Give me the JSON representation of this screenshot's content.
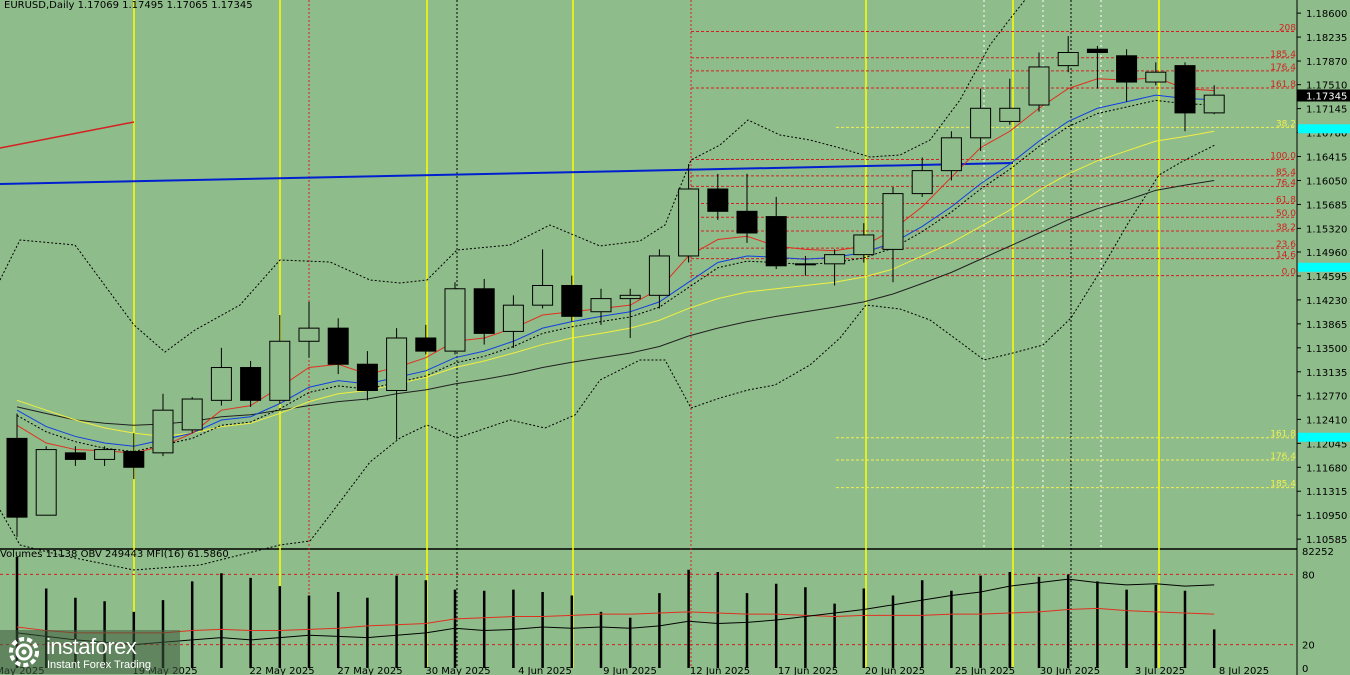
{
  "header": {
    "ohlc": "EURUSD,Daily  1.17069 1.17495 1.17065 1.17345",
    "volume_indicators": "Volumes 11138  OBV 249443  MFI(16) 61.5860"
  },
  "logo": {
    "name": "instaforex",
    "tagline": "Instant Forex Trading"
  },
  "colors": {
    "background": "#8fbc8b",
    "fib_red": "#d42020",
    "fib_yellow": "#f0f050",
    "vline_yellow": "#ffff00",
    "ma_red": "#e03020",
    "ma_blue": "#1040e0",
    "ma_yellow": "#f0f040",
    "ma_black": "#202020",
    "trend_blue": "#0020d0",
    "price_highlight": "#000000",
    "cyan_label": "#00ffff"
  },
  "chart_data": {
    "type": "candlestick",
    "symbol": "EURUSD",
    "timeframe": "Daily",
    "ylim": [
      1.1045,
      1.188
    ],
    "y_ticks": [
      "1.18600",
      "1.18235",
      "1.17870",
      "1.17510",
      "1.17145",
      "1.16780",
      "1.16415",
      "1.16050",
      "1.15685",
      "1.15320",
      "1.14960",
      "1.14595",
      "1.14230",
      "1.13865",
      "1.13500",
      "1.13135",
      "1.12770",
      "1.12410",
      "1.12045",
      "1.11680",
      "1.11315",
      "1.10950",
      "1.10585"
    ],
    "x_labels": [
      "May 2025",
      "19 May 2025",
      "22 May 2025",
      "27 May 2025",
      "30 May 2025",
      "4 Jun 2025",
      "9 Jun 2025",
      "12 Jun 2025",
      "17 Jun 2025",
      "20 Jun 2025",
      "25 Jun 2025",
      "30 Jun 2025",
      "3 Jul 2025",
      "8 Jul 2025"
    ],
    "current_price": "1.17345",
    "candles": [
      {
        "o": 1.1212,
        "h": 1.125,
        "l": 1.1062,
        "c": 1.1092
      },
      {
        "o": 1.1095,
        "h": 1.12,
        "l": 1.1095,
        "c": 1.1195
      },
      {
        "o": 1.119,
        "h": 1.12,
        "l": 1.117,
        "c": 1.118
      },
      {
        "o": 1.118,
        "h": 1.12,
        "l": 1.117,
        "c": 1.1195
      },
      {
        "o": 1.1192,
        "h": 1.122,
        "l": 1.115,
        "c": 1.1168
      },
      {
        "o": 1.119,
        "h": 1.128,
        "l": 1.1185,
        "c": 1.1255
      },
      {
        "o": 1.1225,
        "h": 1.1275,
        "l": 1.122,
        "c": 1.1272
      },
      {
        "o": 1.127,
        "h": 1.135,
        "l": 1.1262,
        "c": 1.132
      },
      {
        "o": 1.132,
        "h": 1.133,
        "l": 1.126,
        "c": 1.127
      },
      {
        "o": 1.127,
        "h": 1.14,
        "l": 1.1265,
        "c": 1.136
      },
      {
        "o": 1.136,
        "h": 1.142,
        "l": 1.1335,
        "c": 1.138
      },
      {
        "o": 1.138,
        "h": 1.1395,
        "l": 1.131,
        "c": 1.1325
      },
      {
        "o": 1.1325,
        "h": 1.1345,
        "l": 1.127,
        "c": 1.1285
      },
      {
        "o": 1.1285,
        "h": 1.138,
        "l": 1.121,
        "c": 1.1365
      },
      {
        "o": 1.1365,
        "h": 1.1385,
        "l": 1.134,
        "c": 1.1345
      },
      {
        "o": 1.1345,
        "h": 1.145,
        "l": 1.134,
        "c": 1.144
      },
      {
        "o": 1.144,
        "h": 1.1455,
        "l": 1.1355,
        "c": 1.1372
      },
      {
        "o": 1.1375,
        "h": 1.143,
        "l": 1.135,
        "c": 1.1415
      },
      {
        "o": 1.1415,
        "h": 1.15,
        "l": 1.141,
        "c": 1.1445
      },
      {
        "o": 1.1445,
        "h": 1.146,
        "l": 1.139,
        "c": 1.1398
      },
      {
        "o": 1.1405,
        "h": 1.144,
        "l": 1.1385,
        "c": 1.1425
      },
      {
        "o": 1.1425,
        "h": 1.144,
        "l": 1.1365,
        "c": 1.143
      },
      {
        "o": 1.143,
        "h": 1.15,
        "l": 1.141,
        "c": 1.149
      },
      {
        "o": 1.149,
        "h": 1.163,
        "l": 1.148,
        "c": 1.1592
      },
      {
        "o": 1.1592,
        "h": 1.1615,
        "l": 1.1545,
        "c": 1.1558
      },
      {
        "o": 1.1558,
        "h": 1.1615,
        "l": 1.151,
        "c": 1.1525
      },
      {
        "o": 1.155,
        "h": 1.158,
        "l": 1.147,
        "c": 1.1475
      },
      {
        "o": 1.1478,
        "h": 1.149,
        "l": 1.146,
        "c": 1.1478
      },
      {
        "o": 1.1478,
        "h": 1.15,
        "l": 1.1445,
        "c": 1.1492
      },
      {
        "o": 1.1492,
        "h": 1.154,
        "l": 1.148,
        "c": 1.1522
      },
      {
        "o": 1.15,
        "h": 1.1595,
        "l": 1.145,
        "c": 1.1585
      },
      {
        "o": 1.1585,
        "h": 1.164,
        "l": 1.158,
        "c": 1.162
      },
      {
        "o": 1.162,
        "h": 1.168,
        "l": 1.1605,
        "c": 1.167
      },
      {
        "o": 1.167,
        "h": 1.1745,
        "l": 1.165,
        "c": 1.1715
      },
      {
        "o": 1.1695,
        "h": 1.176,
        "l": 1.169,
        "c": 1.1715
      },
      {
        "o": 1.172,
        "h": 1.18,
        "l": 1.171,
        "c": 1.1778
      },
      {
        "o": 1.178,
        "h": 1.1825,
        "l": 1.177,
        "c": 1.18
      },
      {
        "o": 1.1805,
        "h": 1.181,
        "l": 1.1745,
        "c": 1.18
      },
      {
        "o": 1.1795,
        "h": 1.1805,
        "l": 1.1725,
        "c": 1.1755
      },
      {
        "o": 1.1755,
        "h": 1.1785,
        "l": 1.175,
        "c": 1.177
      },
      {
        "o": 1.178,
        "h": 1.1785,
        "l": 1.168,
        "c": 1.1708
      },
      {
        "o": 1.1708,
        "h": 1.175,
        "l": 1.1706,
        "c": 1.1735
      }
    ],
    "ma_red": [
      1.1232,
      1.1205,
      1.1195,
      1.1193,
      1.119,
      1.12,
      1.122,
      1.1255,
      1.1262,
      1.129,
      1.132,
      1.1325,
      1.131,
      1.132,
      1.1335,
      1.136,
      1.1365,
      1.138,
      1.14,
      1.1405,
      1.141,
      1.1415,
      1.144,
      1.149,
      1.1515,
      1.152,
      1.1505,
      1.15,
      1.1498,
      1.1505,
      1.153,
      1.1565,
      1.161,
      1.1655,
      1.168,
      1.1715,
      1.1745,
      1.176,
      1.1758,
      1.1762,
      1.1745,
      1.1742
    ],
    "ma_blue": [
      1.1255,
      1.123,
      1.1215,
      1.1205,
      1.12,
      1.121,
      1.122,
      1.124,
      1.1245,
      1.1265,
      1.129,
      1.13,
      1.1295,
      1.1305,
      1.1315,
      1.1335,
      1.1345,
      1.136,
      1.138,
      1.139,
      1.1398,
      1.1405,
      1.142,
      1.145,
      1.148,
      1.149,
      1.1488,
      1.1485,
      1.1488,
      1.1495,
      1.151,
      1.1535,
      1.1565,
      1.16,
      1.163,
      1.1665,
      1.1695,
      1.1715,
      1.1725,
      1.1735,
      1.173,
      1.1728
    ],
    "ma_yellow": [
      1.127,
      1.1255,
      1.124,
      1.1228,
      1.122,
      1.1215,
      1.122,
      1.123,
      1.1235,
      1.125,
      1.1268,
      1.128,
      1.1285,
      1.1295,
      1.1305,
      1.132,
      1.133,
      1.1342,
      1.1355,
      1.1365,
      1.1372,
      1.138,
      1.1392,
      1.141,
      1.1425,
      1.1435,
      1.144,
      1.1445,
      1.145,
      1.1458,
      1.147,
      1.149,
      1.151,
      1.1535,
      1.156,
      1.159,
      1.1615,
      1.1635,
      1.165,
      1.1665,
      1.1672,
      1.168
    ],
    "ma_black": [
      1.126,
      1.125,
      1.124,
      1.1235,
      1.1232,
      1.1234,
      1.1238,
      1.1245,
      1.1248,
      1.1255,
      1.1262,
      1.1268,
      1.1272,
      1.128,
      1.1286,
      1.1295,
      1.1302,
      1.131,
      1.132,
      1.1328,
      1.1335,
      1.1342,
      1.1352,
      1.1368,
      1.138,
      1.139,
      1.1398,
      1.1405,
      1.1412,
      1.142,
      1.1432,
      1.1448,
      1.1465,
      1.1485,
      1.1505,
      1.1525,
      1.1545,
      1.1562,
      1.1575,
      1.159,
      1.1598,
      1.1605
    ],
    "fib_levels": [
      {
        "label": "208",
        "price": 1.1832,
        "color": "red"
      },
      {
        "label": "185.4",
        "price": 1.1792,
        "color": "red"
      },
      {
        "label": "176.4",
        "price": 1.1772,
        "color": "red"
      },
      {
        "label": "161.8",
        "price": 1.1746,
        "color": "red"
      },
      {
        "label": "38.2",
        "price": 1.1686,
        "color": "yellow"
      },
      {
        "label": "100.0",
        "price": 1.1637,
        "color": "red"
      },
      {
        "label": "85.4",
        "price": 1.1612,
        "color": "red"
      },
      {
        "label": "76.4",
        "price": 1.1596,
        "color": "red"
      },
      {
        "label": "61.8",
        "price": 1.157,
        "color": "red"
      },
      {
        "label": "50.0",
        "price": 1.1549,
        "color": "red"
      },
      {
        "label": "38.2",
        "price": 1.1528,
        "color": "red"
      },
      {
        "label": "23.6",
        "price": 1.1502,
        "color": "red"
      },
      {
        "label": "14.6",
        "price": 1.1486,
        "color": "red"
      },
      {
        "label": "0.0",
        "price": 1.146,
        "color": "red"
      },
      {
        "label": "161.8",
        "price": 1.1213,
        "color": "yellow"
      },
      {
        "label": "176.4",
        "price": 1.1179,
        "color": "yellow"
      },
      {
        "label": "185.4",
        "price": 1.1137,
        "color": "yellow"
      }
    ],
    "volume_axis": [
      "82252",
      "80",
      "20",
      "0"
    ],
    "volumes": [
      95,
      68,
      60,
      57,
      48,
      58,
      74,
      81,
      77,
      70,
      62,
      65,
      60,
      79,
      75,
      67,
      66,
      67,
      65,
      62,
      48,
      43,
      64,
      84,
      82,
      64,
      72,
      69,
      55,
      68,
      62,
      75,
      66,
      79,
      82,
      78,
      80,
      74,
      67,
      71,
      66,
      33
    ],
    "mfi": [
      35,
      32,
      30,
      30,
      30,
      30,
      32,
      33,
      32,
      32,
      33,
      34,
      36,
      37,
      38,
      42,
      43,
      44,
      44,
      45,
      46,
      46,
      47,
      48,
      47,
      46,
      46,
      45,
      44,
      45,
      45,
      45,
      46,
      46,
      47,
      48,
      50,
      51,
      49,
      48,
      47,
      46
    ],
    "obv": [
      30,
      27,
      24,
      22,
      20,
      22,
      24,
      26,
      24,
      26,
      28,
      27,
      26,
      28,
      30,
      34,
      32,
      33,
      35,
      34,
      35,
      34,
      36,
      40,
      38,
      39,
      41,
      44,
      47,
      50,
      54,
      58,
      62,
      65,
      70,
      73,
      76,
      73,
      71,
      72,
      70,
      71
    ]
  }
}
